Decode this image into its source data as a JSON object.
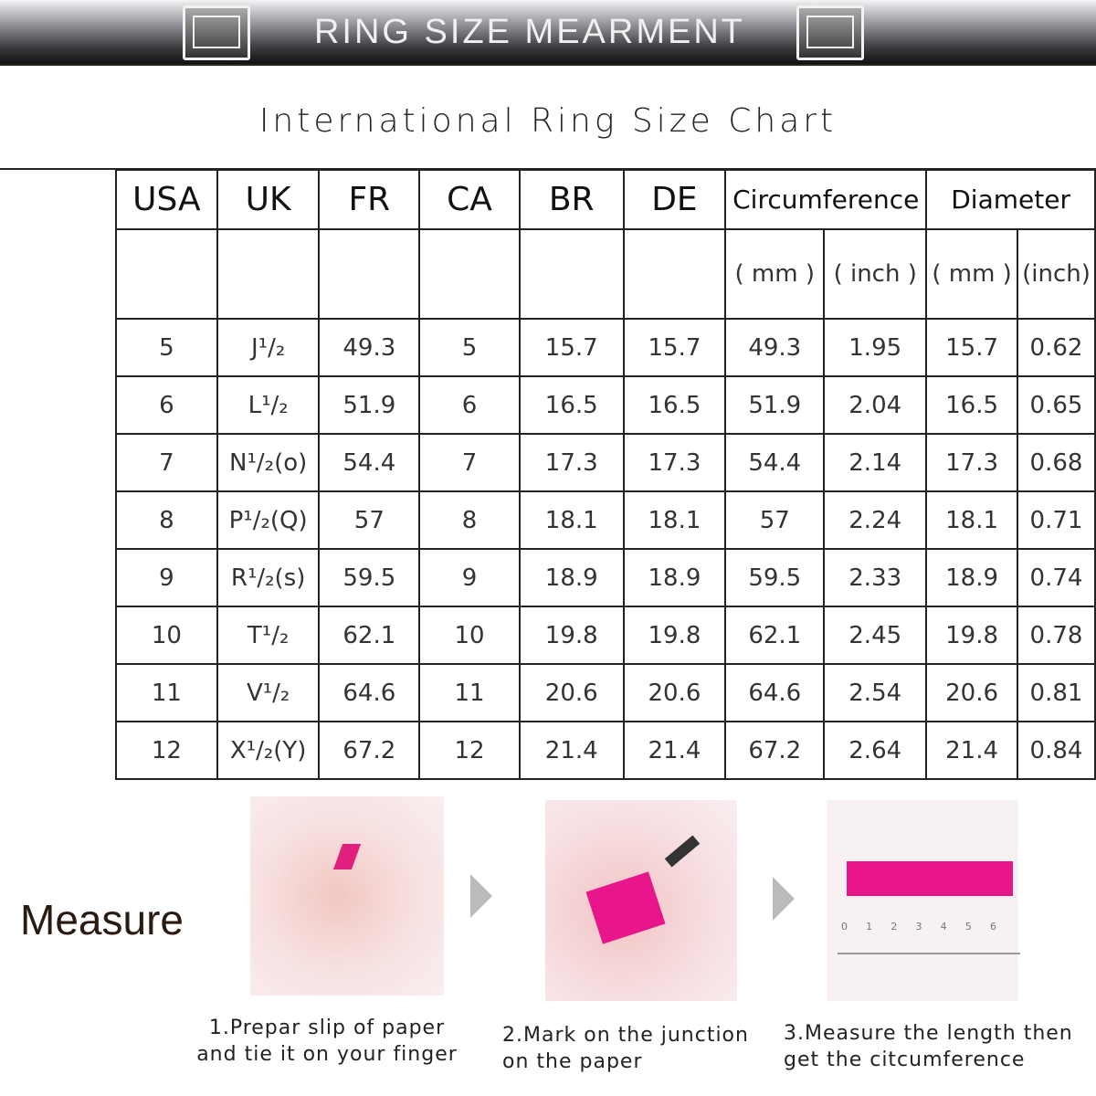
{
  "banner": {
    "title": "RING SIZE MEARMENT"
  },
  "chart_title": "International Ring Size Chart",
  "table": {
    "headers": [
      "USA",
      "UK",
      "FR",
      "CA",
      "BR",
      "DE",
      "Circumference",
      "Diameter"
    ],
    "units": [
      "( mm )",
      "( inch )",
      "( mm )",
      "(inch)"
    ],
    "rows": [
      [
        "5",
        "J¹/₂",
        "49.3",
        "5",
        "15.7",
        "15.7",
        "49.3",
        "1.95",
        "15.7",
        "0.62"
      ],
      [
        "6",
        "L¹/₂",
        "51.9",
        "6",
        "16.5",
        "16.5",
        "51.9",
        "2.04",
        "16.5",
        "0.65"
      ],
      [
        "7",
        "N¹/₂(o)",
        "54.4",
        "7",
        "17.3",
        "17.3",
        "54.4",
        "2.14",
        "17.3",
        "0.68"
      ],
      [
        "8",
        "P¹/₂(Q)",
        "57",
        "8",
        "18.1",
        "18.1",
        "57",
        "2.24",
        "18.1",
        "0.71"
      ],
      [
        "9",
        "R¹/₂(s)",
        "59.5",
        "9",
        "18.9",
        "18.9",
        "59.5",
        "2.33",
        "18.9",
        "0.74"
      ],
      [
        "10",
        "T¹/₂",
        "62.1",
        "10",
        "19.8",
        "19.8",
        "62.1",
        "2.45",
        "19.8",
        "0.78"
      ],
      [
        "11",
        "V¹/₂",
        "64.6",
        "11",
        "20.6",
        "20.6",
        "64.6",
        "2.54",
        "20.6",
        "0.81"
      ],
      [
        "12",
        "X¹/₂(Y)",
        "67.2",
        "12",
        "21.4",
        "21.4",
        "67.2",
        "2.64",
        "21.4",
        "0.84"
      ]
    ]
  },
  "measure": {
    "label": "Measure",
    "steps": [
      {
        "line1": "1.Prepar slip of paper",
        "line2": "and tie it on your finger"
      },
      {
        "line1": "2.Mark on the junction",
        "line2": "on the paper"
      },
      {
        "line1": "3.Measure the length then",
        "line2": "get the citcumference"
      }
    ],
    "ruler_ticks": [
      "0",
      "1",
      "2",
      "3",
      "4",
      "5",
      "6"
    ],
    "accent": "#e8168a"
  }
}
